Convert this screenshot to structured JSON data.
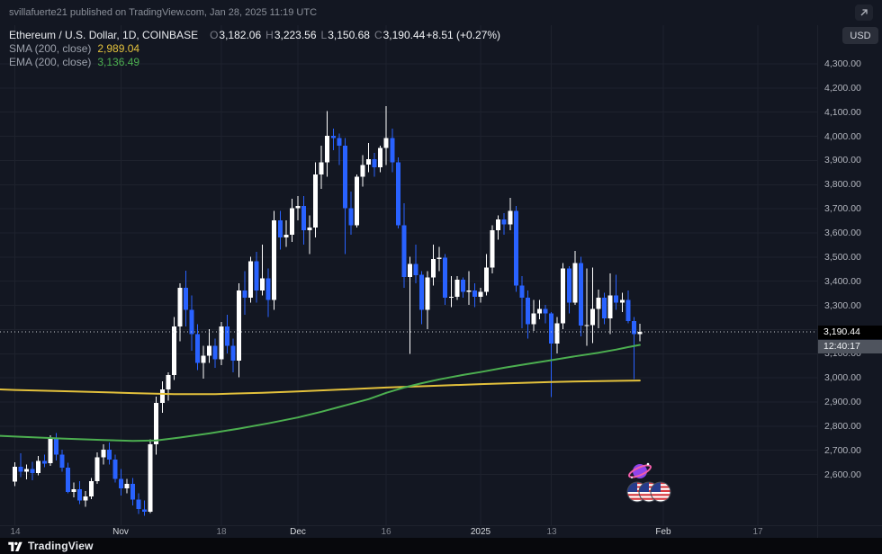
{
  "topbar": {
    "published_text": "svillafuerte21 published on TradingView.com, Jan 28, 2025 11:19 UTC"
  },
  "legend": {
    "symbol_line": "Ethereum / U.S. Dollar, 1D, COINBASE",
    "ohlc": {
      "o_label": "O",
      "o_value": "3,182.06",
      "h_label": "H",
      "h_value": "3,223.56",
      "l_label": "L",
      "l_value": "3,150.68",
      "c_label": "C",
      "c_value": "3,190.44",
      "change": "+8.51 (+0.27%)"
    },
    "indicators": [
      {
        "label": "SMA (200, close)",
        "value": "2,989.04"
      },
      {
        "label": "EMA (200, close)",
        "value": "3,136.49"
      }
    ]
  },
  "currency_button": "USD",
  "price_axis": {
    "last_price_label": "3,190.44",
    "countdown": "12:40:17"
  },
  "time_axis": {
    "ticks": [
      {
        "i": 0,
        "label": "14",
        "major": false
      },
      {
        "i": 18,
        "label": "Nov",
        "major": true
      },
      {
        "i": 35,
        "label": "18",
        "major": false
      },
      {
        "i": 48,
        "label": "Dec",
        "major": true
      },
      {
        "i": 63,
        "label": "16",
        "major": false
      },
      {
        "i": 79,
        "label": "2025",
        "major": true
      },
      {
        "i": 91,
        "label": "13",
        "major": false
      },
      {
        "i": 110,
        "label": "Feb",
        "major": true
      },
      {
        "i": 126,
        "label": "17",
        "major": false
      }
    ]
  },
  "footer": {
    "brand": "TradingView"
  },
  "chart_data": {
    "type": "candlestick",
    "symbol": "Ethereum / U.S. Dollar",
    "interval": "1D",
    "exchange": "COINBASE",
    "ohlc": {
      "open": 3182.06,
      "high": 3223.56,
      "low": 3150.68,
      "close": 3190.44
    },
    "change": 8.51,
    "change_pct": 0.27,
    "last_price": 3190.44,
    "sma": {
      "period": 200,
      "value": 2989.04
    },
    "ema": {
      "period": 200,
      "value": 3136.49
    },
    "price_axis_range": [
      2390,
      4460
    ],
    "price_ticks": [
      2600,
      2700,
      2800,
      2900,
      3000,
      3100,
      3200,
      3300,
      3400,
      3500,
      3600,
      3700,
      3800,
      3900,
      4000,
      4100,
      4200,
      4300
    ],
    "colors": {
      "up": "#ffffff",
      "down": "#2962ff",
      "sma": "#e3c13c",
      "ema": "#4caf50",
      "grid": "#1e222d",
      "price_line": "#c9ccd3"
    },
    "candles": [
      [
        2570,
        2650,
        2552,
        2632
      ],
      [
        2632,
        2688,
        2590,
        2612
      ],
      [
        2612,
        2642,
        2580,
        2622
      ],
      [
        2622,
        2652,
        2576,
        2606
      ],
      [
        2606,
        2676,
        2596,
        2656
      ],
      [
        2656,
        2682,
        2630,
        2646
      ],
      [
        2646,
        2762,
        2636,
        2748
      ],
      [
        2748,
        2772,
        2658,
        2682
      ],
      [
        2682,
        2702,
        2612,
        2628
      ],
      [
        2628,
        2648,
        2522,
        2528
      ],
      [
        2528,
        2566,
        2506,
        2538
      ],
      [
        2538,
        2572,
        2478,
        2492
      ],
      [
        2492,
        2532,
        2466,
        2510
      ],
      [
        2510,
        2586,
        2498,
        2572
      ],
      [
        2572,
        2692,
        2562,
        2672
      ],
      [
        2672,
        2726,
        2642,
        2702
      ],
      [
        2702,
        2732,
        2642,
        2662
      ],
      [
        2662,
        2682,
        2566,
        2582
      ],
      [
        2582,
        2622,
        2512,
        2542
      ],
      [
        2542,
        2582,
        2522,
        2562
      ],
      [
        2562,
        2586,
        2472,
        2496
      ],
      [
        2496,
        2522,
        2436,
        2456
      ],
      [
        2456,
        2492,
        2430,
        2446
      ],
      [
        2446,
        2746,
        2440,
        2726
      ],
      [
        2726,
        2922,
        2682,
        2896
      ],
      [
        2896,
        2986,
        2856,
        2952
      ],
      [
        2952,
        3022,
        2906,
        3012
      ],
      [
        3012,
        3252,
        2992,
        3212
      ],
      [
        3212,
        3392,
        3152,
        3372
      ],
      [
        3372,
        3444,
        3212,
        3282
      ],
      [
        3282,
        3342,
        3112,
        3182
      ],
      [
        3182,
        3222,
        3032,
        3062
      ],
      [
        3062,
        3132,
        2996,
        3092
      ],
      [
        3092,
        3202,
        3062,
        3132
      ],
      [
        3132,
        3162,
        3042,
        3076
      ],
      [
        3076,
        3232,
        3052,
        3212
      ],
      [
        3212,
        3262,
        3102,
        3132
      ],
      [
        3132,
        3162,
        3022,
        3072
      ],
      [
        3072,
        3392,
        3002,
        3362
      ],
      [
        3362,
        3442,
        3262,
        3332
      ],
      [
        3332,
        3502,
        3312,
        3482
      ],
      [
        3482,
        3522,
        3312,
        3362
      ],
      [
        3362,
        3552,
        3342,
        3412
      ],
      [
        3412,
        3452,
        3252,
        3322
      ],
      [
        3322,
        3692,
        3282,
        3652
      ],
      [
        3652,
        3692,
        3532,
        3582
      ],
      [
        3582,
        3652,
        3542,
        3592
      ],
      [
        3592,
        3742,
        3562,
        3702
      ],
      [
        3702,
        3752,
        3652,
        3712
      ],
      [
        3712,
        3752,
        3552,
        3612
      ],
      [
        3612,
        3672,
        3512,
        3622
      ],
      [
        3622,
        3892,
        3582,
        3842
      ],
      [
        3842,
        3962,
        3782,
        3892
      ],
      [
        3892,
        4105,
        3832,
        4002
      ],
      [
        4002,
        4032,
        3942,
        3992
      ],
      [
        3992,
        4012,
        3882,
        3962
      ],
      [
        3962,
        3992,
        3512,
        3702
      ],
      [
        3702,
        3772,
        3592,
        3632
      ],
      [
        3632,
        3842,
        3622,
        3832
      ],
      [
        3832,
        3922,
        3792,
        3882
      ],
      [
        3882,
        3972,
        3852,
        3906
      ],
      [
        3906,
        3932,
        3832,
        3872
      ],
      [
        3872,
        3962,
        3852,
        3952
      ],
      [
        3952,
        4125,
        3882,
        3992
      ],
      [
        3992,
        4032,
        3852,
        3892
      ],
      [
        3892,
        3912,
        3618,
        3632
      ],
      [
        3632,
        3722,
        3372,
        3418
      ],
      [
        3418,
        3502,
        3100,
        3472
      ],
      [
        3472,
        3552,
        3392,
        3426
      ],
      [
        3426,
        3442,
        3222,
        3282
      ],
      [
        3282,
        3442,
        3202,
        3416
      ],
      [
        3416,
        3552,
        3382,
        3492
      ],
      [
        3492,
        3542,
        3442,
        3498
      ],
      [
        3498,
        3512,
        3302,
        3332
      ],
      [
        3332,
        3422,
        3292,
        3336
      ],
      [
        3336,
        3422,
        3322,
        3406
      ],
      [
        3406,
        3416,
        3332,
        3356
      ],
      [
        3356,
        3442,
        3302,
        3362
      ],
      [
        3362,
        3392,
        3292,
        3336
      ],
      [
        3336,
        3372,
        3312,
        3356
      ],
      [
        3356,
        3512,
        3342,
        3456
      ],
      [
        3456,
        3632,
        3432,
        3612
      ],
      [
        3612,
        3672,
        3572,
        3656
      ],
      [
        3656,
        3682,
        3592,
        3636
      ],
      [
        3636,
        3745,
        3612,
        3692
      ],
      [
        3692,
        3712,
        3356,
        3382
      ],
      [
        3382,
        3422,
        3206,
        3332
      ],
      [
        3332,
        3362,
        3162,
        3222
      ],
      [
        3222,
        3322,
        3194,
        3266
      ],
      [
        3266,
        3322,
        3242,
        3286
      ],
      [
        3286,
        3302,
        3226,
        3266
      ],
      [
        3266,
        3272,
        2920,
        3142
      ],
      [
        3142,
        3252,
        3102,
        3226
      ],
      [
        3226,
        3476,
        3202,
        3452
      ],
      [
        3452,
        3462,
        3266,
        3312
      ],
      [
        3312,
        3526,
        3302,
        3476
      ],
      [
        3476,
        3502,
        3172,
        3216
      ],
      [
        3216,
        3452,
        3132,
        3218
      ],
      [
        3218,
        3456,
        3144,
        3286
      ],
      [
        3286,
        3366,
        3206,
        3332
      ],
      [
        3332,
        3352,
        3222,
        3246
      ],
      [
        3246,
        3432,
        3182,
        3342
      ],
      [
        3342,
        3426,
        3282,
        3312
      ],
      [
        3312,
        3352,
        3272,
        3322
      ],
      [
        3322,
        3362,
        3226,
        3236
      ],
      [
        3236,
        3252,
        2995,
        3182
      ],
      [
        3182.06,
        3223.56,
        3150.68,
        3190.44
      ]
    ],
    "sma_points": [
      [
        -2.5,
        2952
      ],
      [
        0,
        2950
      ],
      [
        10,
        2944
      ],
      [
        20,
        2937
      ],
      [
        27,
        2933
      ],
      [
        34,
        2933
      ],
      [
        42,
        2938
      ],
      [
        48,
        2944
      ],
      [
        56,
        2952
      ],
      [
        63,
        2960
      ],
      [
        70,
        2966
      ],
      [
        79,
        2974
      ],
      [
        86,
        2979
      ],
      [
        91,
        2983
      ],
      [
        98,
        2986
      ],
      [
        103,
        2988
      ],
      [
        106,
        2989
      ]
    ],
    "ema_points": [
      [
        -2.5,
        2760
      ],
      [
        0,
        2757
      ],
      [
        8,
        2749
      ],
      [
        15,
        2743
      ],
      [
        20,
        2739
      ],
      [
        24,
        2741
      ],
      [
        28,
        2753
      ],
      [
        33,
        2770
      ],
      [
        38,
        2790
      ],
      [
        43,
        2812
      ],
      [
        48,
        2836
      ],
      [
        52,
        2860
      ],
      [
        56,
        2886
      ],
      [
        60,
        2912
      ],
      [
        63,
        2938
      ],
      [
        66,
        2960
      ],
      [
        69,
        2978
      ],
      [
        72,
        2994
      ],
      [
        76,
        3012
      ],
      [
        79,
        3024
      ],
      [
        83,
        3042
      ],
      [
        87,
        3058
      ],
      [
        91,
        3073
      ],
      [
        95,
        3089
      ],
      [
        99,
        3104
      ],
      [
        102,
        3117
      ],
      [
        104,
        3127
      ],
      [
        106,
        3136.49
      ]
    ]
  }
}
